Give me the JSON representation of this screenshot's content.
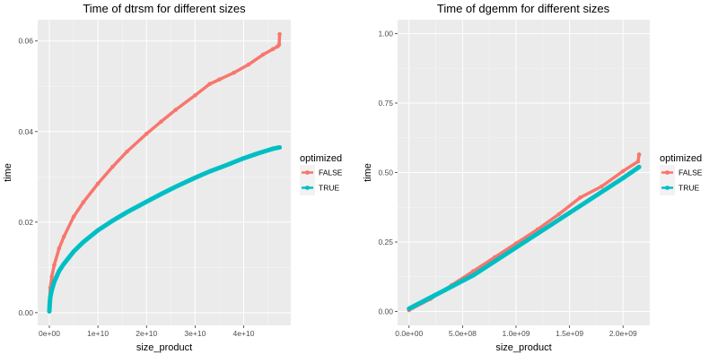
{
  "chart_data": [
    {
      "type": "line",
      "title": "Time of dtrsm for different sizes",
      "xlabel": "size_product",
      "ylabel": "time",
      "xlim": [
        -2400000000.0,
        49700000000.0
      ],
      "ylim": [
        -0.0028,
        0.0647
      ],
      "x_ticks": [
        0,
        10000000000.0,
        20000000000.0,
        30000000000.0,
        40000000000.0
      ],
      "x_tick_labels": [
        "0e+00",
        "1e+10",
        "2e+10",
        "3e+10",
        "4e+10"
      ],
      "y_ticks": [
        0,
        0.02,
        0.04,
        0.06
      ],
      "y_tick_labels": [
        "0.00",
        "0.02",
        "0.04",
        "0.06"
      ],
      "grid": true,
      "legend": {
        "title": "optimized",
        "placement": "right"
      },
      "series": [
        {
          "name": "FALSE",
          "color": "#F8766D",
          "x": [
            0,
            50000000.0,
            200000000.0,
            500000000.0,
            1000000000.0,
            2000000000.0,
            3000000000.0,
            5000000000.0,
            7000000000.0,
            10000000000.0,
            13000000000.0,
            16000000000.0,
            20000000000.0,
            23000000000.0,
            26000000000.0,
            30000000000.0,
            33000000000.0,
            35000000000.0,
            38000000000.0,
            41000000000.0,
            44000000000.0,
            46000000000.0,
            47000000000.0,
            47300000000.0,
            47400000000.0
          ],
          "y": [
            0.0005,
            0.0025,
            0.0055,
            0.008,
            0.0105,
            0.0142,
            0.0168,
            0.0212,
            0.0244,
            0.0285,
            0.0322,
            0.0356,
            0.0395,
            0.0422,
            0.0448,
            0.048,
            0.0505,
            0.0515,
            0.053,
            0.0548,
            0.057,
            0.0582,
            0.0588,
            0.0592,
            0.0615
          ]
        },
        {
          "name": "TRUE",
          "color": "#00BFC4",
          "x": [
            0,
            50000000.0,
            200000000.0,
            500000000.0,
            1000000000.0,
            2000000000.0,
            3000000000.0,
            5000000000.0,
            7000000000.0,
            10000000000.0,
            13000000000.0,
            16000000000.0,
            20000000000.0,
            23000000000.0,
            26000000000.0,
            30000000000.0,
            33000000000.0,
            36000000000.0,
            40000000000.0,
            43000000000.0,
            46000000000.0,
            47400000000.0
          ],
          "y": [
            0.0003,
            0.0015,
            0.0035,
            0.005,
            0.0068,
            0.0092,
            0.0108,
            0.0135,
            0.0156,
            0.0182,
            0.0203,
            0.0222,
            0.0245,
            0.0262,
            0.0278,
            0.0298,
            0.0312,
            0.0324,
            0.0341,
            0.0352,
            0.0362,
            0.0365
          ]
        }
      ]
    },
    {
      "type": "line",
      "title": "Time of dgemm for different sizes",
      "xlabel": "size_product",
      "ylabel": "time",
      "xlim": [
        -107000000.0,
        2250000000.0
      ],
      "ylim": [
        -0.05,
        1.05
      ],
      "x_ticks": [
        0,
        500000000.0,
        1000000000.0,
        1500000000.0,
        2000000000.0
      ],
      "x_tick_labels": [
        "0.0e+00",
        "5.0e+08",
        "1.0e+09",
        "1.5e+09",
        "2.0e+09"
      ],
      "y_ticks": [
        0,
        0.25,
        0.5,
        0.75,
        1
      ],
      "y_tick_labels": [
        "0.00",
        "0.25",
        "0.50",
        "0.75",
        "1.00"
      ],
      "grid": true,
      "legend": {
        "title": "optimized",
        "placement": "right"
      },
      "series": [
        {
          "name": "FALSE",
          "color": "#F8766D",
          "x": [
            0,
            200000000.0,
            400000000.0,
            600000000.0,
            800000000.0,
            1000000000.0,
            1200000000.0,
            1400000000.0,
            1600000000.0,
            1800000000.0,
            2000000000.0,
            2140000000.0,
            2150000000.0
          ],
          "y": [
            0.005,
            0.045,
            0.095,
            0.145,
            0.195,
            0.245,
            0.295,
            0.35,
            0.41,
            0.45,
            0.505,
            0.54,
            0.565
          ]
        },
        {
          "name": "TRUE",
          "color": "#00BFC4",
          "x": [
            0,
            200000000.0,
            400000000.0,
            600000000.0,
            800000000.0,
            1000000000.0,
            1200000000.0,
            1400000000.0,
            1600000000.0,
            1800000000.0,
            2000000000.0,
            2150000000.0
          ],
          "y": [
            0.01,
            0.05,
            0.09,
            0.13,
            0.18,
            0.23,
            0.28,
            0.33,
            0.38,
            0.43,
            0.48,
            0.52
          ]
        }
      ]
    }
  ]
}
